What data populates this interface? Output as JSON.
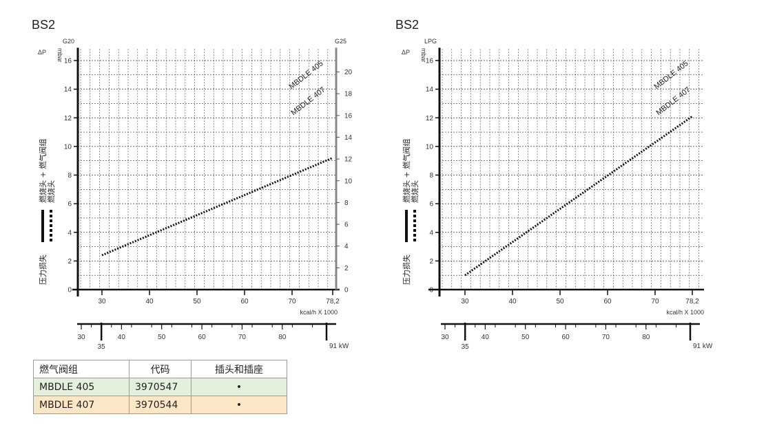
{
  "chart_data": [
    {
      "type": "line",
      "title": "BS2",
      "left_axis_label": "G20",
      "right_axis_label": "G25",
      "ylabel": "ΔP",
      "ylabel_unit": "mbar",
      "xlabel": "kcal/h X 1000",
      "ylim": [
        0,
        16.8
      ],
      "yticks": [
        0,
        2,
        4,
        6,
        8,
        10,
        12,
        14,
        16
      ],
      "right_ylim": [
        0,
        22.1
      ],
      "right_yticks": [
        0,
        2,
        4,
        6,
        8,
        10,
        12,
        14,
        16,
        18,
        20
      ],
      "xlim": [
        25,
        78.2
      ],
      "xticks": [
        "30",
        "40",
        "50",
        "60",
        "70",
        "78,2"
      ],
      "kw_ticks": [
        "30",
        "40",
        "50",
        "60",
        "70",
        "80"
      ],
      "kw_marks": [
        "35",
        "91 kW"
      ],
      "grid": true,
      "series": [
        {
          "name": "MBDLE 405",
          "style": "dotted",
          "x": [
            30,
            78.2
          ],
          "y": [
            2.4,
            9.2
          ]
        },
        {
          "name": "MBDLE 407",
          "style": "dotted",
          "x": [
            30,
            78.2
          ],
          "y": [
            2.4,
            9.2
          ]
        }
      ]
    },
    {
      "type": "line",
      "title": "BS2",
      "left_axis_label": "LPG",
      "ylabel": "ΔP",
      "ylabel_unit": "mbar",
      "xlabel": "kcal/h X 1000",
      "ylim": [
        0,
        16.8
      ],
      "yticks": [
        0,
        2,
        4,
        6,
        8,
        10,
        12,
        14,
        16
      ],
      "xlim": [
        25,
        78.2
      ],
      "xticks": [
        "30",
        "40",
        "50",
        "60",
        "70",
        "78,2"
      ],
      "kw_ticks": [
        "30",
        "40",
        "50",
        "60",
        "70",
        "80"
      ],
      "kw_marks": [
        "35",
        "91 kW"
      ],
      "grid": true,
      "series": [
        {
          "name": "MBDLE 405",
          "style": "dotted",
          "x": [
            30,
            78.2
          ],
          "y": [
            1.0,
            12.1
          ]
        },
        {
          "name": "MBDLE 407",
          "style": "dotted",
          "x": [
            30,
            78.2
          ],
          "y": [
            1.0,
            12.1
          ]
        }
      ]
    }
  ],
  "legend": {
    "pressure_loss": "压力损失",
    "head_plus_valve": "燃烧头 + 燃气阀组",
    "head_only": "燃烧头"
  },
  "table": {
    "headers": [
      "燃气阀组",
      "代码",
      "插头和插座"
    ],
    "rows": [
      {
        "name": "MBDLE 405",
        "code": "3970547",
        "plug": "•"
      },
      {
        "name": "MBDLE 407",
        "code": "3970544",
        "plug": "•"
      }
    ]
  }
}
